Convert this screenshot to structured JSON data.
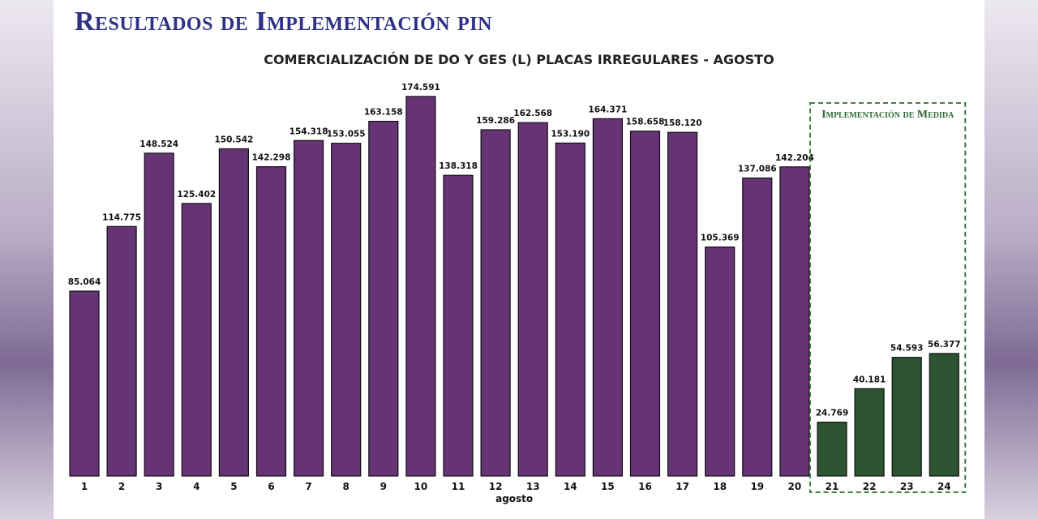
{
  "page": {
    "title": "Resultados de Implementación pin"
  },
  "colors": {
    "bar_before": "#663375",
    "bar_after": "#2d5432",
    "title": "#2e3184",
    "measure_box": "#2d6b33"
  },
  "chart_data": {
    "type": "bar",
    "title": "COMERCIALIZACIÓN DE DO Y GES (L) PLACAS IRREGULARES - AGOSTO",
    "xlabel": "agosto",
    "ylabel": "",
    "ylim": [
      0,
      180000
    ],
    "grid": false,
    "categories": [
      "1",
      "2",
      "3",
      "4",
      "5",
      "6",
      "7",
      "8",
      "9",
      "10",
      "11",
      "12",
      "13",
      "14",
      "15",
      "16",
      "17",
      "18",
      "19",
      "20",
      "21",
      "22",
      "23",
      "24"
    ],
    "values": [
      85064,
      114775,
      148524,
      125402,
      150542,
      142298,
      154318,
      153055,
      163158,
      174591,
      138318,
      159286,
      162568,
      153190,
      164371,
      158658,
      158120,
      105369,
      137086,
      142204,
      24769,
      40181,
      54593,
      56377
    ],
    "value_labels": [
      "85.064",
      "114.775",
      "148.524",
      "125.402",
      "150.542",
      "142.298",
      "154.318",
      "153.055",
      "163.158",
      "174.591",
      "138.318",
      "159.286",
      "162.568",
      "153.190",
      "164.371",
      "158.658",
      "158.120",
      "105.369",
      "137.086",
      "142.204",
      "24.769",
      "40.181",
      "54.593",
      "56.377"
    ],
    "annotation": {
      "label": "Implementación de Medida",
      "categories": [
        "21",
        "22",
        "23",
        "24"
      ]
    }
  }
}
